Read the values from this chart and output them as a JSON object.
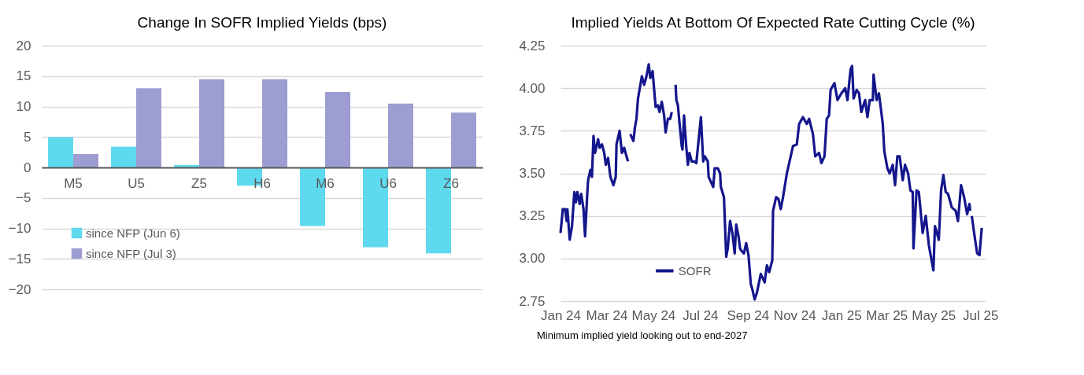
{
  "chart_data": [
    {
      "type": "bar",
      "title": "Change In SOFR Implied Yields (bps)",
      "categories": [
        "M5",
        "U5",
        "Z5",
        "H6",
        "M6",
        "U6",
        "Z6"
      ],
      "series": [
        {
          "name": "since NFP (Jun 6)",
          "color": "#5fd9ee",
          "values": [
            5.0,
            3.4,
            0.4,
            -3.0,
            -9.6,
            -13.1,
            -14.1
          ]
        },
        {
          "name": "since NFP (Jul 3)",
          "color": "#9d9dd1",
          "values": [
            2.2,
            13.0,
            14.5,
            14.5,
            12.4,
            10.5,
            9.0
          ]
        }
      ],
      "ylim": [
        -20,
        20
      ],
      "yticks": [
        -20,
        -15,
        -10,
        -5,
        0,
        5,
        10,
        15,
        20
      ],
      "grid": "y",
      "legend": "bottom left"
    },
    {
      "type": "line",
      "title": "Implied Yields At Bottom Of Expected Rate Cutting Cycle (%)",
      "annotations": [
        "Minimum implied yield looking out to end-2027"
      ],
      "series": [
        {
          "name": "SOFR",
          "color": "#14168c",
          "x": [
            "2024-01-01",
            "2024-01-04",
            "2024-01-07",
            "2024-01-09",
            "2024-01-10",
            "2024-01-13",
            "2024-01-16",
            "2024-01-19",
            "2024-01-21",
            "2024-01-23",
            "2024-01-26",
            "2024-01-28",
            "2024-01-31",
            "2024-02-02",
            "2024-02-05",
            "2024-02-06",
            "2024-02-09",
            "2024-02-11",
            "2024-02-13",
            "2024-02-15",
            "2024-02-17",
            "2024-02-19",
            "2024-02-21",
            "2024-02-24",
            "2024-02-27",
            "2024-02-29",
            "2024-03-03",
            "2024-03-06",
            "2024-03-10",
            "2024-03-13",
            "2024-03-14",
            "2024-03-18",
            "2024-03-21",
            "2024-03-24",
            "2024-03-27",
            "2024-03-29",
            "2024-03-31",
            "2024-04-01",
            "2024-04-05",
            "2024-04-07",
            "2024-04-09",
            "2024-04-11",
            "2024-04-13",
            "2024-04-16",
            "2024-04-19",
            "2024-04-22",
            "2024-04-25",
            "2024-04-27",
            "2024-04-30",
            "2024-05-04",
            "2024-05-07",
            "2024-05-09",
            "2024-05-12",
            "2024-05-15",
            "2024-05-17",
            "2024-05-20",
            "2024-05-23",
            "2024-05-25",
            "2024-05-27",
            "2024-05-30",
            "2024-05-31",
            "2024-06-02",
            "2024-06-04",
            "2024-06-07",
            "2024-06-08",
            "2024-06-10",
            "2024-06-13",
            "2024-06-15",
            "2024-06-17",
            "2024-06-20",
            "2024-06-23",
            "2024-06-26",
            "2024-06-28",
            "2024-07-02",
            "2024-07-05",
            "2024-07-07",
            "2024-07-11",
            "2024-07-12",
            "2024-07-15",
            "2024-07-18",
            "2024-07-20",
            "2024-07-24",
            "2024-07-27",
            "2024-07-28",
            "2024-08-01",
            "2024-08-04",
            "2024-08-06",
            "2024-08-09",
            "2024-08-12",
            "2024-08-15",
            "2024-08-17",
            "2024-08-20",
            "2024-08-22",
            "2024-08-23",
            "2024-08-27",
            "2024-08-30",
            "2024-09-02",
            "2024-09-05",
            "2024-09-07",
            "2024-09-10",
            "2024-09-13",
            "2024-09-18",
            "2024-09-23",
            "2024-09-26",
            "2024-09-29",
            "2024-10-03",
            "2024-10-04",
            "2024-10-08",
            "2024-10-11",
            "2024-10-14",
            "2024-10-17",
            "2024-10-22",
            "2024-10-25",
            "2024-10-30",
            "2024-11-04",
            "2024-11-07",
            "2024-11-12",
            "2024-11-17",
            "2024-11-20",
            "2024-11-25",
            "2024-11-28",
            "2024-12-03",
            "2024-12-06",
            "2024-12-10",
            "2024-12-13",
            "2024-12-16",
            "2024-12-18",
            "2024-12-23",
            "2024-12-27",
            "2025-01-01",
            "2025-01-06",
            "2025-01-09",
            "2025-01-13",
            "2025-01-15",
            "2025-01-17",
            "2025-01-21",
            "2025-01-24",
            "2025-01-27",
            "2025-02-01",
            "2025-02-04",
            "2025-02-07",
            "2025-02-11",
            "2025-02-12",
            "2025-02-16",
            "2025-02-19",
            "2025-02-24",
            "2025-02-26",
            "2025-03-02",
            "2025-03-05",
            "2025-03-09",
            "2025-03-12",
            "2025-03-15",
            "2025-03-18",
            "2025-03-22",
            "2025-03-25",
            "2025-03-29",
            "2025-04-01",
            "2025-04-04",
            "2025-04-05",
            "2025-04-09",
            "2025-04-12",
            "2025-04-17",
            "2025-04-21",
            "2025-04-25",
            "2025-05-01",
            "2025-05-03",
            "2025-05-08",
            "2025-05-11",
            "2025-05-14",
            "2025-05-17",
            "2025-05-20",
            "2025-05-25",
            "2025-05-30",
            "2025-06-02",
            "2025-06-06",
            "2025-06-10",
            "2025-06-14",
            "2025-06-17",
            "2025-06-18",
            "2025-06-19",
            "2025-06-20",
            "2025-06-24",
            "2025-06-27",
            "2025-06-30",
            "2025-07-03"
          ],
          "values": [
            3.15,
            3.29,
            3.29,
            3.22,
            3.29,
            3.11,
            3.19,
            3.39,
            3.33,
            3.39,
            3.32,
            3.38,
            3.29,
            3.13,
            3.39,
            3.46,
            3.52,
            3.48,
            3.72,
            3.62,
            3.66,
            3.7,
            3.65,
            3.67,
            3.62,
            3.55,
            3.59,
            3.48,
            3.43,
            3.48,
            3.67,
            3.75,
            3.62,
            3.65,
            3.6,
            3.57,
            null,
            3.73,
            3.69,
            3.77,
            3.82,
            3.94,
            3.99,
            4.07,
            4.02,
            4.07,
            4.14,
            4.06,
            4.1,
            3.89,
            3.9,
            3.86,
            3.92,
            3.84,
            3.74,
            3.82,
            3.82,
            3.86,
            null,
            4.02,
            3.93,
            3.9,
            3.8,
            3.66,
            3.64,
            3.84,
            3.65,
            3.55,
            3.62,
            3.57,
            3.57,
            3.56,
            3.65,
            3.83,
            3.57,
            3.6,
            3.57,
            3.48,
            3.45,
            3.42,
            3.53,
            3.53,
            3.5,
            3.42,
            3.36,
            3.01,
            3.06,
            3.22,
            3.15,
            3.03,
            3.2,
            3.13,
            3.06,
            3.05,
            3.03,
            3.09,
            3.02,
            2.85,
            2.82,
            2.76,
            2.8,
            2.91,
            2.86,
            2.96,
            2.92,
            2.99,
            3.28,
            3.36,
            3.35,
            3.29,
            3.36,
            3.5,
            3.56,
            3.66,
            3.67,
            3.79,
            3.83,
            3.79,
            3.82,
            3.73,
            3.6,
            3.62,
            3.56,
            3.6,
            3.82,
            3.84,
            3.99,
            4.03,
            3.93,
            3.97,
            4.0,
            3.93,
            4.11,
            4.13,
            3.94,
            3.99,
            3.97,
            3.86,
            3.93,
            3.83,
            3.93,
            3.93,
            4.08,
            3.93,
            3.97,
            3.79,
            3.63,
            3.53,
            3.5,
            3.55,
            3.43,
            3.6,
            3.6,
            3.46,
            3.55,
            3.5,
            3.4,
            3.39,
            3.06,
            3.4,
            3.39,
            3.15,
            3.25,
            3.08,
            2.93,
            3.19,
            3.11,
            3.4,
            3.49,
            3.39,
            3.38,
            3.3,
            3.28,
            3.22,
            3.43,
            3.36,
            3.26,
            3.32,
            3.28,
            null,
            3.25,
            3.12,
            3.03,
            3.02,
            3.18
          ]
        }
      ],
      "xlim": [
        "2024-01-01",
        "2025-07-08"
      ],
      "xticks": [
        {
          "value": "2024-01-01",
          "label": "Jan 24"
        },
        {
          "value": "2024-03-01",
          "label": "Mar 24"
        },
        {
          "value": "2024-05-01",
          "label": "May 24"
        },
        {
          "value": "2024-07-01",
          "label": "Jul 24"
        },
        {
          "value": "2024-09-01",
          "label": "Sep 24"
        },
        {
          "value": "2024-11-01",
          "label": "Nov 24"
        },
        {
          "value": "2025-01-01",
          "label": "Jan 25"
        },
        {
          "value": "2025-03-01",
          "label": "Mar 25"
        },
        {
          "value": "2025-05-01",
          "label": "May 25"
        },
        {
          "value": "2025-07-01",
          "label": "Jul 25"
        }
      ],
      "ylim": [
        2.75,
        4.25
      ],
      "yticks": [
        2.75,
        {
          "value": 3,
          "label": "3.00"
        },
        3.25,
        {
          "value": 3.5,
          "label": "3.50"
        },
        {
          "value": 3.75,
          "label": "3.75"
        },
        {
          "value": 4,
          "label": "4.00"
        },
        4.25
      ],
      "grid": "y",
      "legend": "bottom",
      "marker": "none",
      "line_style": "solid"
    }
  ]
}
